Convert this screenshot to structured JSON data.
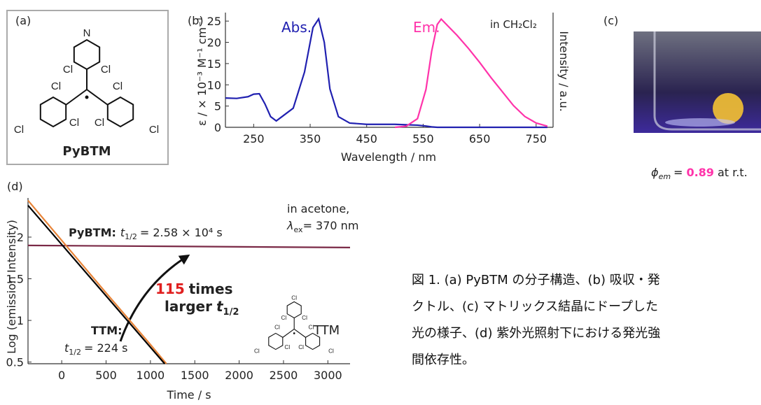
{
  "panel_labels": [
    "(a)",
    "(b)",
    "(c)",
    "(d)"
  ],
  "molecule": {
    "name": "PyBTM",
    "atoms": [
      "N",
      "Cl",
      "Cl",
      "Cl",
      "Cl",
      "Cl",
      "Cl",
      "Cl",
      "Cl"
    ]
  },
  "inset_molecule": {
    "name": "TTM",
    "atoms": [
      "Cl",
      "Cl",
      "Cl",
      "Cl",
      "Cl",
      "Cl",
      "Cl",
      "Cl",
      "Cl"
    ]
  },
  "quantum_yield": {
    "symbol": "ϕ",
    "subscript": "em",
    "equals": "=",
    "value": 0.89,
    "condition": "at r.t."
  },
  "caption": [
    "図 1. (a) PyBTM の分子構造、(b) 吸収・発",
    "クトル、(c) マトリックス結晶にドープした",
    "光の様子、(d) 紫外光照射下における発光強",
    "間依存性。"
  ],
  "chart_data": [
    {
      "type": "line",
      "x_label": "Wavelength / nm",
      "y_label": "ε / × 10⁻³ M⁻¹ cm⁻¹",
      "y2_label": "Intensity / a.u.",
      "annotation": "in CH₂Cl₂",
      "x": [
        200,
        220,
        240,
        250,
        260,
        270,
        280,
        290,
        300,
        320,
        340,
        355,
        365,
        375,
        385,
        400,
        420,
        450,
        500,
        520,
        540,
        555,
        565,
        575,
        582,
        595,
        610,
        630,
        650,
        670,
        690,
        710,
        730,
        750,
        770
      ],
      "series": [
        {
          "name": "Abs.",
          "color": "#2020b0",
          "values": [
            6.9,
            6.8,
            7.2,
            7.8,
            7.9,
            5.5,
            2.5,
            1.5,
            2.5,
            4.5,
            13,
            23.5,
            25.5,
            20,
            9,
            2.5,
            1,
            0.7,
            0.7,
            0.6,
            0.5,
            0.3,
            0.1,
            0,
            0,
            0,
            0,
            0,
            0,
            0,
            0,
            0,
            0,
            0,
            0
          ]
        },
        {
          "name": "Em.",
          "color": "#ff33aa",
          "axis": "y2",
          "values": [
            null,
            null,
            null,
            null,
            null,
            null,
            null,
            null,
            null,
            null,
            null,
            null,
            null,
            null,
            null,
            null,
            null,
            null,
            0,
            0.01,
            0.08,
            0.35,
            0.7,
            0.95,
            1.0,
            0.93,
            0.85,
            0.73,
            0.6,
            0.46,
            0.33,
            0.2,
            0.1,
            0.04,
            0.01
          ]
        }
      ],
      "xlim": [
        200,
        780
      ],
      "ylim": [
        0,
        27
      ],
      "y2lim": [
        0,
        1.06
      ],
      "xticks": [
        250,
        350,
        450,
        550,
        650,
        750
      ],
      "yticks": [
        0,
        5,
        10,
        15,
        20,
        25
      ],
      "grid": false
    },
    {
      "type": "line",
      "x_label": "Time / s",
      "y_label": "Log (emission Intensity)",
      "annotations": [
        "in acetone,",
        {
          "symbol": "λ",
          "subscript": "ex",
          "text": "= 370 nm"
        }
      ],
      "half_lives": [
        {
          "symbol": "t",
          "subscript": "1/2",
          "text": "= 2.58 × 10⁴ s"
        },
        {
          "symbol": "t",
          "subscript": "1/2",
          "text": "= 224 s"
        }
      ],
      "ratio": {
        "value": 115,
        "text": "times",
        "line2": "larger",
        "symbol": "t",
        "subscript": "1/2"
      },
      "series": [
        {
          "name": "PyBTM:",
          "color": "#7a2946",
          "x": [
            -380,
            3250
          ],
          "values": [
            1.9,
            1.875
          ]
        },
        {
          "name": "TTM:",
          "color": "#e8853a",
          "x": [
            -380,
            0,
            500,
            1000,
            1180
          ],
          "values": [
            2.44,
            1.96,
            1.33,
            0.71,
            0.48
          ]
        },
        {
          "color": "#000000",
          "x": [
            -380,
            1160
          ],
          "values": [
            2.38,
            0.48
          ]
        }
      ],
      "xlim": [
        -380,
        3250
      ],
      "ylim": [
        0.48,
        2.47
      ],
      "xticks": [
        0,
        500,
        1000,
        1500,
        2000,
        2500,
        3000
      ],
      "yticks": [
        0.5,
        1,
        1.5,
        2
      ],
      "grid": false
    }
  ]
}
